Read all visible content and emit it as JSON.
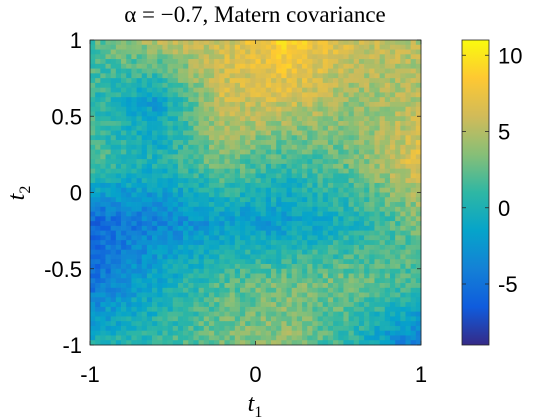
{
  "chart_data": {
    "type": "heatmap",
    "title": "α = −0.7, Matern covariance",
    "xlabel_base": "t",
    "xlabel_sub": "1",
    "ylabel_base": "t",
    "ylabel_sub": "2",
    "xlim": [
      -1,
      1
    ],
    "ylim": [
      -1,
      1
    ],
    "xticks": [
      -1,
      0,
      1
    ],
    "xtick_labels": [
      "-1",
      "0",
      "1"
    ],
    "yticks": [
      -1,
      -0.5,
      0,
      0.5,
      1
    ],
    "ytick_labels": [
      "-1",
      "-0.5",
      "0",
      "0.5",
      "1"
    ],
    "colorbar": {
      "range": [
        -9,
        11
      ],
      "ticks": [
        -5,
        0,
        5,
        10
      ],
      "tick_labels": [
        "-5",
        "0",
        "5",
        "10"
      ],
      "colormap": "parula"
    },
    "grid_x": [
      -1,
      -0.6,
      -0.2,
      0.2,
      0.6,
      1
    ],
    "grid_y": [
      1,
      0.6,
      0.2,
      -0.2,
      -0.6,
      -1
    ],
    "grid_values": [
      [
        2,
        5,
        6,
        9,
        6,
        5
      ],
      [
        1,
        -2,
        6,
        6,
        4,
        5
      ],
      [
        2,
        0,
        3,
        1,
        3,
        7
      ],
      [
        -6,
        -4,
        -2,
        -2,
        0,
        3
      ],
      [
        -5,
        -1,
        2,
        3,
        3,
        1
      ],
      [
        0,
        1,
        3,
        4,
        0,
        -5
      ]
    ]
  }
}
